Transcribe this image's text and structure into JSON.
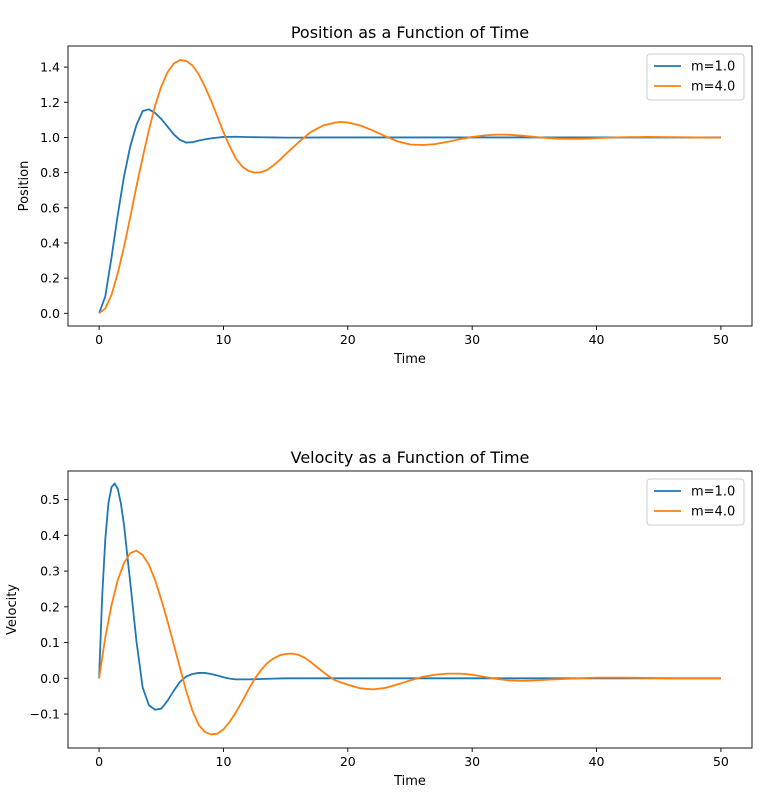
{
  "chart_data": [
    {
      "type": "line",
      "title": "Position as a Function of Time",
      "xlabel": "Time",
      "ylabel": "Position",
      "xlim": [
        -2.5,
        52.5
      ],
      "ylim": [
        -0.072,
        1.52
      ],
      "xticks": [
        0,
        10,
        20,
        30,
        40,
        50
      ],
      "yticks": [
        0.0,
        0.2,
        0.4,
        0.6,
        0.8,
        1.0,
        1.2,
        1.4
      ],
      "ytick_labels": [
        "0.0",
        "0.2",
        "0.4",
        "0.6",
        "0.8",
        "1.0",
        "1.2",
        "1.4"
      ],
      "grid": false,
      "legend": "upper-right",
      "series": [
        {
          "name": "m=1.0",
          "color": "#1f77b4",
          "x": [
            0,
            0.5,
            1,
            1.5,
            2,
            2.5,
            3,
            3.5,
            4,
            4.5,
            5,
            5.5,
            6,
            6.5,
            7,
            7.5,
            8,
            8.5,
            9,
            9.5,
            10,
            11,
            12,
            13,
            14,
            15,
            16,
            18,
            20,
            25,
            30,
            35,
            40,
            45,
            50
          ],
          "y": [
            0,
            0.097,
            0.318,
            0.559,
            0.777,
            0.947,
            1.07,
            1.15,
            1.16,
            1.14,
            1.105,
            1.062,
            1.018,
            0.986,
            0.971,
            0.973,
            0.982,
            0.989,
            0.995,
            0.999,
            1.003,
            1.004,
            1.002,
            1.001,
            1.0,
            0.999,
            0.999,
            1.0,
            1.0,
            1.0,
            1.0,
            1.0,
            1.0,
            1.0,
            1.0
          ]
        },
        {
          "name": "m=4.0",
          "color": "#ff7f0e",
          "x": [
            0,
            0.5,
            1,
            1.5,
            2,
            2.5,
            3,
            3.5,
            4,
            4.5,
            5,
            5.5,
            6,
            6.5,
            7,
            7.5,
            8,
            8.5,
            9,
            9.5,
            10,
            10.5,
            11,
            11.5,
            12,
            12.5,
            13,
            13.5,
            14,
            14.5,
            15,
            16,
            17,
            18,
            19,
            19.5,
            20,
            21,
            22,
            23,
            24,
            25,
            26,
            27,
            28,
            29,
            30,
            31,
            32,
            32.5,
            33,
            34,
            35,
            36,
            37,
            38,
            39,
            40,
            42,
            44,
            46,
            48,
            50
          ],
          "y": [
            0,
            0.028,
            0.105,
            0.228,
            0.377,
            0.545,
            0.72,
            0.885,
            1.04,
            1.18,
            1.29,
            1.37,
            1.42,
            1.44,
            1.435,
            1.41,
            1.36,
            1.29,
            1.21,
            1.12,
            1.03,
            0.95,
            0.88,
            0.835,
            0.81,
            0.8,
            0.802,
            0.815,
            0.84,
            0.87,
            0.905,
            0.97,
            1.03,
            1.068,
            1.085,
            1.088,
            1.085,
            1.068,
            1.04,
            1.007,
            0.978,
            0.96,
            0.957,
            0.962,
            0.975,
            0.99,
            1.003,
            1.012,
            1.016,
            1.016,
            1.015,
            1.01,
            1.003,
            0.997,
            0.993,
            0.992,
            0.993,
            0.996,
            1.001,
            1.003,
            1.002,
            1.0,
            0.999
          ]
        }
      ]
    },
    {
      "type": "line",
      "title": "Velocity as a Function of Time",
      "xlabel": "Time",
      "ylabel": "Velocity",
      "xlim": [
        -2.5,
        52.5
      ],
      "ylim": [
        -0.195,
        0.58
      ],
      "xticks": [
        0,
        10,
        20,
        30,
        40,
        50
      ],
      "yticks": [
        -0.1,
        0.0,
        0.1,
        0.2,
        0.3,
        0.4,
        0.5
      ],
      "ytick_labels": [
        "−0.1",
        "0.0",
        "0.1",
        "0.2",
        "0.3",
        "0.4",
        "0.5"
      ],
      "grid": false,
      "legend": "upper-right",
      "series": [
        {
          "name": "m=1.0",
          "color": "#1f77b4",
          "x": [
            0,
            0.25,
            0.5,
            0.75,
            1,
            1.25,
            1.5,
            1.75,
            2,
            2.5,
            3,
            3.5,
            4,
            4.5,
            5,
            5.5,
            6,
            6.5,
            7,
            7.5,
            8,
            8.5,
            9,
            9.5,
            10,
            10.5,
            11,
            12,
            13,
            14,
            15,
            16,
            18,
            20,
            25,
            30,
            35,
            40,
            45,
            50
          ],
          "y": [
            0,
            0.23,
            0.39,
            0.49,
            0.535,
            0.545,
            0.53,
            0.49,
            0.43,
            0.27,
            0.105,
            -0.025,
            -0.075,
            -0.088,
            -0.085,
            -0.063,
            -0.035,
            -0.01,
            0.005,
            0.012,
            0.015,
            0.015,
            0.012,
            0.008,
            0.003,
            -0.001,
            -0.003,
            -0.003,
            -0.002,
            -0.001,
            0.0,
            0.0,
            0.0,
            0.0,
            0.0,
            0.0,
            0.0,
            0.0,
            0.0,
            0.0
          ]
        },
        {
          "name": "m=4.0",
          "color": "#ff7f0e",
          "x": [
            0,
            0.5,
            1,
            1.5,
            2,
            2.5,
            3,
            3.5,
            4,
            4.5,
            5,
            5.5,
            6,
            6.5,
            7,
            7.5,
            8,
            8.5,
            9,
            9.5,
            10,
            10.5,
            11,
            11.5,
            12,
            12.5,
            13,
            13.5,
            14,
            14.5,
            15,
            15.5,
            16,
            16.5,
            17,
            17.5,
            18,
            18.5,
            19,
            19.5,
            20,
            21,
            22,
            23,
            24,
            25,
            26,
            27,
            28,
            29,
            30,
            31,
            32,
            33,
            34,
            35,
            36,
            38,
            40,
            42,
            44,
            46,
            48,
            50
          ],
          "y": [
            0,
            0.115,
            0.205,
            0.275,
            0.322,
            0.35,
            0.357,
            0.345,
            0.318,
            0.275,
            0.22,
            0.16,
            0.095,
            0.03,
            -0.035,
            -0.09,
            -0.13,
            -0.15,
            -0.157,
            -0.155,
            -0.143,
            -0.122,
            -0.095,
            -0.065,
            -0.032,
            -0.002,
            0.022,
            0.042,
            0.055,
            0.064,
            0.068,
            0.069,
            0.066,
            0.058,
            0.046,
            0.032,
            0.018,
            0.005,
            -0.006,
            -0.012,
            -0.018,
            -0.028,
            -0.031,
            -0.027,
            -0.017,
            -0.006,
            0.004,
            0.01,
            0.013,
            0.013,
            0.01,
            0.004,
            -0.002,
            -0.006,
            -0.007,
            -0.006,
            -0.004,
            -0.001,
            0.002,
            0.002,
            0.001,
            0.0,
            0.0,
            0.0
          ]
        }
      ]
    }
  ]
}
